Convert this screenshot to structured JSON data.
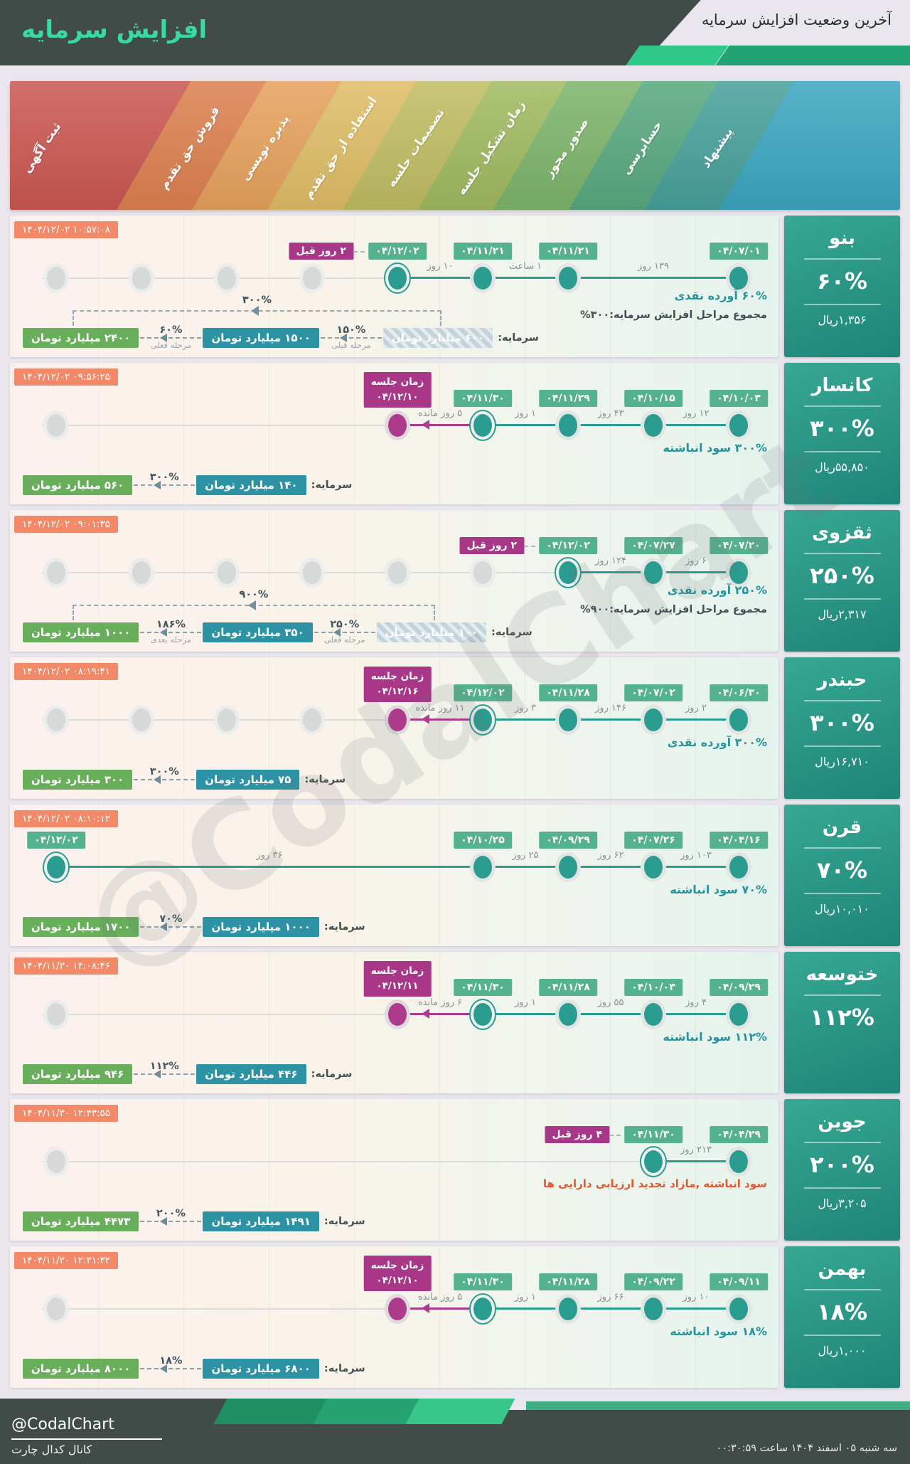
{
  "header": {
    "title": "افزایش سرمایه",
    "subtitle": "آخرین وضعیت افزایش سرمایه"
  },
  "watermark": "@CodalChart",
  "labels": {
    "capital": "سرمایه:"
  },
  "stages": [
    "ثبت آگهی",
    "فروش حق تقدم",
    "پذیره نویسی",
    "استفاده از حق تقدم",
    "تصمیمات جلسه",
    "زمان تشکیل جلسه",
    "صدور مجوز",
    "حسابرسی",
    "پیشنهاد"
  ],
  "colors": {
    "header_dark": "#414b48",
    "title_green": "#38d9a2",
    "accent_teal": "#2b9c90",
    "badge_green": "#55b28f",
    "badge_purple": "#a93787",
    "badge_salmon": "#f28a69",
    "money_teal": "#2d93a4",
    "money_green": "#68ae5b",
    "card_teal": "#2a9a8a",
    "stage_colors": [
      "#cb5752",
      "#dd8050",
      "#e6a25c",
      "#dfbd66",
      "#c0bd62",
      "#a0ba60",
      "#7db46a",
      "#58a87f",
      "#47a09b"
    ],
    "banner_tail_color": "#3ba6c0"
  },
  "chart_data": {
    "type": "table",
    "title": "آخرین وضعیت افزایش سرمایه",
    "stage_columns": [
      "ثبت آگهی",
      "فروش حق تقدم",
      "پذیره نویسی",
      "استفاده از حق تقدم",
      "تصمیمات جلسه",
      "زمان تشکیل جلسه",
      "صدور مجوز",
      "حسابرسی",
      "پیشنهاد"
    ],
    "rows": [
      {
        "company": "بنو",
        "percent": "۶۰%",
        "price": "۱,۳۵۶ریال",
        "timestamp": "۱۴۰۴/۱۲/۰۲ ۱۰:۵۷:۰۸",
        "nodes": [
          {
            "col": 1,
            "type": "gray"
          },
          {
            "col": 2,
            "type": "gray"
          },
          {
            "col": 3,
            "type": "gray"
          },
          {
            "col": 4,
            "type": "gray"
          },
          {
            "col": 5,
            "type": "ringed",
            "date": "۰۴/۱۲/۰۲",
            "ago": "۲ روز قبل"
          },
          {
            "col": 6,
            "type": "done",
            "date": "۰۴/۱۱/۲۱"
          },
          {
            "col": 7,
            "type": "done",
            "date": "۰۴/۱۱/۲۱"
          },
          {
            "col": 9,
            "type": "done",
            "date": "۰۴/۰۷/۰۱"
          }
        ],
        "line": {
          "from": 5,
          "to": 9
        },
        "segments": [
          {
            "from": 5,
            "to": 6,
            "label": "۱۰ روز"
          },
          {
            "from": 6,
            "to": 7,
            "label": "۱ ساعت"
          },
          {
            "from": 7,
            "to": 9,
            "label": "۱۳۹ روز"
          }
        ],
        "descriptions": [
          {
            "text": "۶۰% آورده نقدی",
            "color": "teal"
          },
          {
            "text": "مجموع مراحل افزایش سرمایه:۳۰۰%",
            "color": "dark"
          }
        ],
        "capital": {
          "value": "۶۰۰ میلیارد تومان",
          "style": "hatched"
        },
        "steps": [
          {
            "pct": "۱۵۰%",
            "sub": "مرحله قبلی",
            "value": "۱۵۰۰ میلیارد تومان",
            "style": "teal"
          },
          {
            "pct": "۶۰%",
            "sub": "مرحله فعلی",
            "value": "۲۴۰۰ میلیارد تومان",
            "style": "green"
          }
        ],
        "bracket": "۳۰۰%"
      },
      {
        "company": "کانسار",
        "percent": "۳۰۰%",
        "price": "۵۵,۸۵۰ریال",
        "timestamp": "۱۴۰۴/۱۲/۰۲ ۰۹:۵۶:۲۵",
        "nodes": [
          {
            "col": 1,
            "type": "gray"
          },
          {
            "col": 5,
            "type": "meet",
            "meet_title": "زمان جلسه",
            "meet_date": "۰۴/۱۲/۱۰"
          },
          {
            "col": 6,
            "type": "ringed",
            "date": "۰۴/۱۱/۳۰"
          },
          {
            "col": 7,
            "type": "done",
            "date": "۰۴/۱۱/۲۹"
          },
          {
            "col": 8,
            "type": "done",
            "date": "۰۴/۱۰/۱۵"
          },
          {
            "col": 9,
            "type": "done",
            "date": "۰۴/۱۰/۰۳"
          }
        ],
        "line": {
          "from": 6,
          "to": 9
        },
        "meet_segment": {
          "from": 5,
          "to": 6,
          "label": "۵ روز مانده"
        },
        "segments": [
          {
            "from": 6,
            "to": 7,
            "label": "۱ روز"
          },
          {
            "from": 7,
            "to": 8,
            "label": "۴۳ روز"
          },
          {
            "from": 8,
            "to": 9,
            "label": "۱۲ روز"
          }
        ],
        "descriptions": [
          {
            "text": "۳۰۰% سود انباشته",
            "color": "teal"
          }
        ],
        "capital": {
          "value": "۱۴۰ میلیارد تومان",
          "style": "teal"
        },
        "steps": [
          {
            "pct": "۳۰۰%",
            "sub": "",
            "value": "۵۶۰ میلیارد تومان",
            "style": "green"
          }
        ]
      },
      {
        "company": "ثقزوی",
        "percent": "۲۵۰%",
        "price": "۲,۳۱۷ریال",
        "timestamp": "۱۴۰۴/۱۲/۰۲ ۰۹:۰۱:۳۵",
        "nodes": [
          {
            "col": 1,
            "type": "gray"
          },
          {
            "col": 2,
            "type": "gray"
          },
          {
            "col": 3,
            "type": "gray"
          },
          {
            "col": 4,
            "type": "gray"
          },
          {
            "col": 5,
            "type": "gray"
          },
          {
            "col": 6,
            "type": "gray"
          },
          {
            "col": 7,
            "type": "ringed",
            "date": "۰۴/۱۲/۰۲",
            "ago": "۲ روز قبل"
          },
          {
            "col": 8,
            "type": "done",
            "date": "۰۴/۰۷/۲۷"
          },
          {
            "col": 9,
            "type": "done",
            "date": "۰۴/۰۷/۲۰"
          }
        ],
        "line": {
          "from": 7,
          "to": 9
        },
        "segments": [
          {
            "from": 7,
            "to": 8,
            "label": "۱۲۴ روز"
          },
          {
            "from": 8,
            "to": 9,
            "label": "۶ روز"
          }
        ],
        "descriptions": [
          {
            "text": "۲۵۰% آورده نقدی",
            "color": "teal"
          },
          {
            "text": "مجموع مراحل افزایش سرمایه:۹۰۰%",
            "color": "dark"
          }
        ],
        "capital": {
          "value": "۱۰۰ میلیارد تومان",
          "style": "hatched"
        },
        "steps": [
          {
            "pct": "۲۵۰%",
            "sub": "مرحله فعلی",
            "value": "۳۵۰ میلیارد تومان",
            "style": "teal"
          },
          {
            "pct": "۱۸۶%",
            "sub": "مرحله بعدی",
            "value": "۱۰۰۰ میلیارد تومان",
            "style": "green"
          }
        ],
        "bracket": "۹۰۰%"
      },
      {
        "company": "حبندر",
        "percent": "۳۰۰%",
        "price": "۱۶,۷۱۰ریال",
        "timestamp": "۱۴۰۴/۱۲/۰۲ ۰۸:۱۹:۴۱",
        "nodes": [
          {
            "col": 1,
            "type": "gray"
          },
          {
            "col": 2,
            "type": "gray"
          },
          {
            "col": 3,
            "type": "gray"
          },
          {
            "col": 4,
            "type": "gray"
          },
          {
            "col": 5,
            "type": "meet",
            "meet_title": "زمان جلسه",
            "meet_date": "۰۴/۱۲/۱۶"
          },
          {
            "col": 6,
            "type": "ringed",
            "date": "۰۴/۱۲/۰۲"
          },
          {
            "col": 7,
            "type": "done",
            "date": "۰۴/۱۱/۲۸"
          },
          {
            "col": 8,
            "type": "done",
            "date": "۰۴/۰۷/۰۲"
          },
          {
            "col": 9,
            "type": "done",
            "date": "۰۴/۰۶/۳۰"
          }
        ],
        "line": {
          "from": 6,
          "to": 9
        },
        "meet_segment": {
          "from": 5,
          "to": 6,
          "label": "۱۱ روز مانده"
        },
        "segments": [
          {
            "from": 6,
            "to": 7,
            "label": "۳ روز"
          },
          {
            "from": 7,
            "to": 8,
            "label": "۱۴۶ روز"
          },
          {
            "from": 8,
            "to": 9,
            "label": "۲ روز"
          }
        ],
        "descriptions": [
          {
            "text": "۳۰۰% آورده نقدی",
            "color": "teal"
          }
        ],
        "capital": {
          "value": "۷۵ میلیارد تومان",
          "style": "teal"
        },
        "steps": [
          {
            "pct": "۳۰۰%",
            "sub": "",
            "value": "۳۰۰ میلیارد تومان",
            "style": "green"
          }
        ]
      },
      {
        "company": "قرن",
        "percent": "۷۰%",
        "price": "۱۰,۰۱۰ریال",
        "timestamp": "۱۴۰۴/۱۲/۰۲ ۰۸:۱۰:۱۲",
        "nodes": [
          {
            "col": 1,
            "type": "ringed",
            "date": "۰۴/۱۲/۰۲"
          },
          {
            "col": 6,
            "type": "done",
            "date": "۰۴/۱۰/۲۵"
          },
          {
            "col": 7,
            "type": "done",
            "date": "۰۴/۰۹/۲۹"
          },
          {
            "col": 8,
            "type": "done",
            "date": "۰۴/۰۷/۲۶"
          },
          {
            "col": 9,
            "type": "done",
            "date": "۰۴/۰۴/۱۶"
          }
        ],
        "line": {
          "from": 1,
          "to": 9
        },
        "segments": [
          {
            "from": 1,
            "to": 6,
            "label": "۳۶ روز"
          },
          {
            "from": 6,
            "to": 7,
            "label": "۲۵ روز"
          },
          {
            "from": 7,
            "to": 8,
            "label": "۶۲ روز"
          },
          {
            "from": 8,
            "to": 9,
            "label": "۱۰۳ روز"
          }
        ],
        "descriptions": [
          {
            "text": "۷۰% سود انباشته",
            "color": "teal"
          }
        ],
        "capital": {
          "value": "۱۰۰۰ میلیارد تومان",
          "style": "teal"
        },
        "steps": [
          {
            "pct": "۷۰%",
            "sub": "",
            "value": "۱۷۰۰ میلیارد تومان",
            "style": "green"
          }
        ]
      },
      {
        "company": "ختوسعه",
        "percent": "۱۱۲%",
        "price": "",
        "timestamp": "۱۴۰۴/۱۱/۳۰ ۱۴:۰۸:۴۶",
        "nodes": [
          {
            "col": 1,
            "type": "gray"
          },
          {
            "col": 5,
            "type": "meet",
            "meet_title": "زمان جلسه",
            "meet_date": "۰۴/۱۲/۱۱"
          },
          {
            "col": 6,
            "type": "ringed",
            "date": "۰۴/۱۱/۳۰"
          },
          {
            "col": 7,
            "type": "done",
            "date": "۰۴/۱۱/۲۸"
          },
          {
            "col": 8,
            "type": "done",
            "date": "۰۴/۱۰/۰۳"
          },
          {
            "col": 9,
            "type": "done",
            "date": "۰۴/۰۹/۲۹"
          }
        ],
        "line": {
          "from": 6,
          "to": 9
        },
        "meet_segment": {
          "from": 5,
          "to": 6,
          "label": "۶ روز مانده"
        },
        "segments": [
          {
            "from": 6,
            "to": 7,
            "label": "۱ روز"
          },
          {
            "from": 7,
            "to": 8,
            "label": "۵۵ روز"
          },
          {
            "from": 8,
            "to": 9,
            "label": "۴ روز"
          }
        ],
        "descriptions": [
          {
            "text": "۱۱۲% سود انباشته",
            "color": "teal"
          }
        ],
        "capital": {
          "value": "۴۴۶ میلیارد تومان",
          "style": "teal"
        },
        "steps": [
          {
            "pct": "۱۱۲%",
            "sub": "",
            "value": "۹۴۶ میلیارد تومان",
            "style": "green"
          }
        ]
      },
      {
        "company": "جوین",
        "percent": "۲۰۰%",
        "price": "۳,۲۰۵ریال",
        "timestamp": "۱۴۰۴/۱۱/۳۰ ۱۲:۴۳:۵۵",
        "nodes": [
          {
            "col": 1,
            "type": "gray"
          },
          {
            "col": 8,
            "type": "ringed",
            "date": "۰۴/۱۱/۳۰",
            "ago": "۴ روز قبل"
          },
          {
            "col": 9,
            "type": "done",
            "date": "۰۴/۰۴/۲۹"
          }
        ],
        "line": {
          "from": 8,
          "to": 9
        },
        "segments": [
          {
            "from": 8,
            "to": 9,
            "label": "۲۱۳ روز"
          }
        ],
        "descriptions": [
          {
            "text": "سود انباشته ,مازاد تجدید ارزیابی دارایی ها",
            "color": "orange"
          }
        ],
        "capital": {
          "value": "۱۴۹۱ میلیارد تومان",
          "style": "teal"
        },
        "steps": [
          {
            "pct": "۲۰۰%",
            "sub": "",
            "value": "۴۴۷۳ میلیارد تومان",
            "style": "green"
          }
        ]
      },
      {
        "company": "بهمن",
        "percent": "۱۸%",
        "price": "۱,۰۰۰ریال",
        "timestamp": "۱۴۰۴/۱۱/۳۰ ۱۲:۳۱:۳۲",
        "nodes": [
          {
            "col": 1,
            "type": "gray"
          },
          {
            "col": 5,
            "type": "meet",
            "meet_title": "زمان جلسه",
            "meet_date": "۰۴/۱۲/۱۰"
          },
          {
            "col": 6,
            "type": "ringed",
            "date": "۰۴/۱۱/۳۰"
          },
          {
            "col": 7,
            "type": "done",
            "date": "۰۴/۱۱/۲۸"
          },
          {
            "col": 8,
            "type": "done",
            "date": "۰۴/۰۹/۲۲"
          },
          {
            "col": 9,
            "type": "done",
            "date": "۰۴/۰۹/۱۱"
          }
        ],
        "line": {
          "from": 6,
          "to": 9
        },
        "meet_segment": {
          "from": 5,
          "to": 6,
          "label": "۵ روز مانده"
        },
        "segments": [
          {
            "from": 6,
            "to": 7,
            "label": "۱ روز"
          },
          {
            "from": 7,
            "to": 8,
            "label": "۶۶ روز"
          },
          {
            "from": 8,
            "to": 9,
            "label": "۱۰ روز"
          }
        ],
        "descriptions": [
          {
            "text": "۱۸% سود انباشته",
            "color": "teal"
          }
        ],
        "capital": {
          "value": "۶۸۰۰ میلیارد تومان",
          "style": "teal"
        },
        "steps": [
          {
            "pct": "۱۸%",
            "sub": "",
            "value": "۸۰۰۰ میلیارد تومان",
            "style": "green"
          }
        ]
      }
    ]
  },
  "footer": {
    "brand": "@CodalChart",
    "channel": "کانال کدال چارت",
    "datetime": "سه شنبه ۰۵ اسفند ۱۴۰۴ ساعت ۰۰:۳۰:۵۹"
  }
}
